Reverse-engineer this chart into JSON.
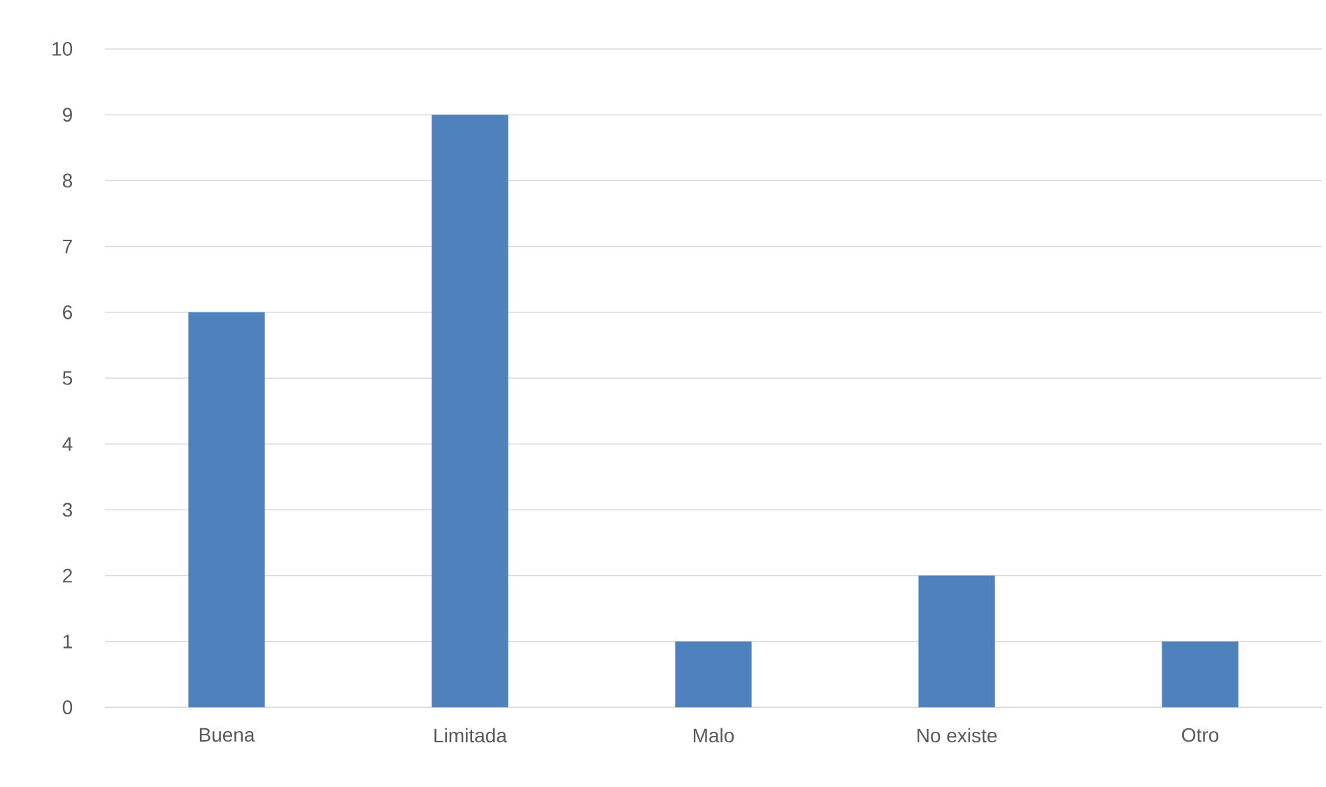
{
  "chart_data": {
    "type": "bar",
    "categories": [
      "Buena",
      "Limitada",
      "Malo",
      "No existe",
      "Otro"
    ],
    "values": [
      6,
      9,
      1,
      2,
      1
    ],
    "color": "#4f81bd",
    "ylim": [
      0,
      10
    ],
    "yticks": [
      0,
      1,
      2,
      3,
      4,
      5,
      6,
      7,
      8,
      9,
      10
    ],
    "grid": "y"
  }
}
